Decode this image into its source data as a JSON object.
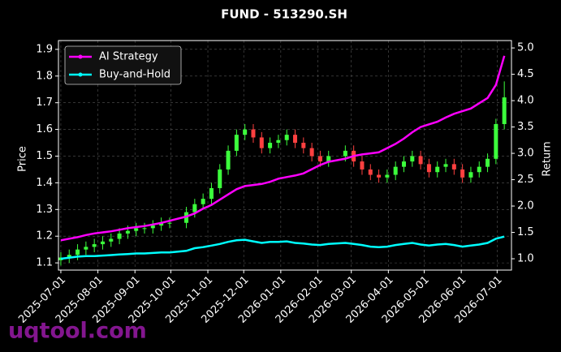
{
  "chart_data": {
    "type": "candlestick",
    "title": "FUND - 513290.SH",
    "ylabel": "Price",
    "y2label": "Return",
    "watermark": "uqtool.com",
    "x": [
      "2025-07-01",
      "2025-07-08",
      "2025-07-15",
      "2025-07-22",
      "2025-07-29",
      "2025-08-05",
      "2025-08-12",
      "2025-08-19",
      "2025-08-26",
      "2025-09-02",
      "2025-09-09",
      "2025-09-16",
      "2025-09-23",
      "2025-09-30",
      "2025-10-14",
      "2025-10-21",
      "2025-10-28",
      "2025-11-04",
      "2025-11-11",
      "2025-11-18",
      "2025-11-25",
      "2025-12-02",
      "2025-12-09",
      "2025-12-16",
      "2025-12-23",
      "2025-12-30",
      "2026-01-06",
      "2026-01-13",
      "2026-01-20",
      "2026-01-27",
      "2026-02-03",
      "2026-02-10",
      "2026-02-24",
      "2026-03-03",
      "2026-03-10",
      "2026-03-17",
      "2026-03-24",
      "2026-03-31",
      "2026-04-07",
      "2026-04-14",
      "2026-04-21",
      "2026-04-28",
      "2026-05-05",
      "2026-05-12",
      "2026-05-19",
      "2026-05-26",
      "2026-06-02",
      "2026-06-09",
      "2026-06-16",
      "2026-06-23",
      "2026-06-30",
      "2026-07-07"
    ],
    "open": [
      1.11,
      1.12,
      1.13,
      1.15,
      1.16,
      1.17,
      1.18,
      1.19,
      1.21,
      1.22,
      1.23,
      1.23,
      1.24,
      1.25,
      1.25,
      1.29,
      1.32,
      1.34,
      1.38,
      1.45,
      1.52,
      1.58,
      1.6,
      1.57,
      1.53,
      1.55,
      1.56,
      1.58,
      1.55,
      1.53,
      1.5,
      1.48,
      1.5,
      1.52,
      1.48,
      1.45,
      1.43,
      1.42,
      1.43,
      1.46,
      1.48,
      1.5,
      1.47,
      1.44,
      1.46,
      1.47,
      1.45,
      1.42,
      1.44,
      1.46,
      1.49,
      1.62
    ],
    "high": [
      1.14,
      1.15,
      1.17,
      1.18,
      1.19,
      1.2,
      1.21,
      1.23,
      1.24,
      1.25,
      1.25,
      1.26,
      1.27,
      1.27,
      1.31,
      1.34,
      1.36,
      1.4,
      1.47,
      1.54,
      1.6,
      1.62,
      1.62,
      1.59,
      1.57,
      1.58,
      1.6,
      1.6,
      1.57,
      1.55,
      1.52,
      1.52,
      1.54,
      1.54,
      1.5,
      1.47,
      1.45,
      1.45,
      1.48,
      1.5,
      1.52,
      1.52,
      1.49,
      1.48,
      1.49,
      1.49,
      1.47,
      1.46,
      1.48,
      1.51,
      1.64,
      1.78
    ],
    "low": [
      1.09,
      1.1,
      1.11,
      1.13,
      1.14,
      1.15,
      1.16,
      1.17,
      1.19,
      1.2,
      1.21,
      1.21,
      1.22,
      1.23,
      1.23,
      1.27,
      1.3,
      1.32,
      1.36,
      1.43,
      1.5,
      1.56,
      1.55,
      1.51,
      1.51,
      1.53,
      1.54,
      1.53,
      1.51,
      1.48,
      1.46,
      1.46,
      1.48,
      1.46,
      1.43,
      1.41,
      1.4,
      1.4,
      1.41,
      1.44,
      1.46,
      1.45,
      1.42,
      1.42,
      1.44,
      1.43,
      1.4,
      1.4,
      1.42,
      1.44,
      1.47,
      1.6
    ],
    "close": [
      1.12,
      1.13,
      1.15,
      1.16,
      1.17,
      1.18,
      1.19,
      1.21,
      1.22,
      1.23,
      1.23,
      1.24,
      1.25,
      1.25,
      1.29,
      1.32,
      1.34,
      1.38,
      1.45,
      1.52,
      1.58,
      1.6,
      1.57,
      1.53,
      1.55,
      1.56,
      1.58,
      1.55,
      1.53,
      1.5,
      1.48,
      1.5,
      1.52,
      1.48,
      1.45,
      1.43,
      1.42,
      1.43,
      1.46,
      1.48,
      1.5,
      1.47,
      1.44,
      1.46,
      1.47,
      1.45,
      1.42,
      1.44,
      1.46,
      1.49,
      1.62,
      1.72
    ],
    "up_color": "#3cff3c",
    "down_color": "#ff4040",
    "series": [
      {
        "name": "AI Strategy",
        "color": "#ff00ff",
        "axis": "y2",
        "values": [
          1.35,
          1.38,
          1.41,
          1.45,
          1.48,
          1.5,
          1.52,
          1.55,
          1.58,
          1.6,
          1.62,
          1.65,
          1.68,
          1.72,
          1.8,
          1.86,
          1.95,
          2.02,
          2.12,
          2.22,
          2.32,
          2.38,
          2.4,
          2.42,
          2.46,
          2.52,
          2.55,
          2.58,
          2.62,
          2.7,
          2.78,
          2.84,
          2.9,
          2.95,
          2.98,
          3.0,
          3.02,
          3.1,
          3.18,
          3.28,
          3.4,
          3.5,
          3.55,
          3.6,
          3.68,
          3.75,
          3.8,
          3.85,
          3.95,
          4.05,
          4.3,
          4.85
        ]
      },
      {
        "name": "Buy-and-Hold",
        "color": "#00ffff",
        "axis": "y2",
        "values": [
          1.0,
          1.02,
          1.04,
          1.05,
          1.05,
          1.06,
          1.07,
          1.08,
          1.09,
          1.1,
          1.1,
          1.11,
          1.12,
          1.12,
          1.15,
          1.2,
          1.22,
          1.25,
          1.28,
          1.32,
          1.35,
          1.36,
          1.33,
          1.3,
          1.32,
          1.32,
          1.33,
          1.3,
          1.29,
          1.27,
          1.26,
          1.28,
          1.3,
          1.28,
          1.26,
          1.23,
          1.22,
          1.23,
          1.26,
          1.28,
          1.3,
          1.27,
          1.25,
          1.27,
          1.28,
          1.26,
          1.23,
          1.25,
          1.27,
          1.3,
          1.38,
          1.42
        ]
      }
    ],
    "xlim": [
      "2025-06-29",
      "2026-07-13"
    ],
    "xticks": [
      "2025-07-01",
      "2025-08-01",
      "2025-09-01",
      "2025-10-01",
      "2025-11-01",
      "2025-12-01",
      "2026-01-01",
      "2026-02-01",
      "2026-03-01",
      "2026-04-01",
      "2026-05-01",
      "2026-06-01",
      "2026-07-01"
    ],
    "ylim": [
      1.073,
      1.933
    ],
    "yticks": [
      1.1,
      1.2,
      1.3,
      1.4,
      1.5,
      1.6,
      1.7,
      1.8,
      1.9
    ],
    "y2lim": [
      0.785,
      5.14
    ],
    "y2ticks": [
      {
        "value": 1,
        "label": "1.0"
      },
      1.5,
      {
        "value": 2,
        "label": "2.0"
      },
      2.5,
      {
        "value": 3,
        "label": "3.0"
      },
      3.5,
      {
        "value": 4,
        "label": "4.0"
      },
      4.5,
      {
        "value": 5,
        "label": "5.0"
      }
    ],
    "grid": true,
    "legend": "upper left"
  }
}
